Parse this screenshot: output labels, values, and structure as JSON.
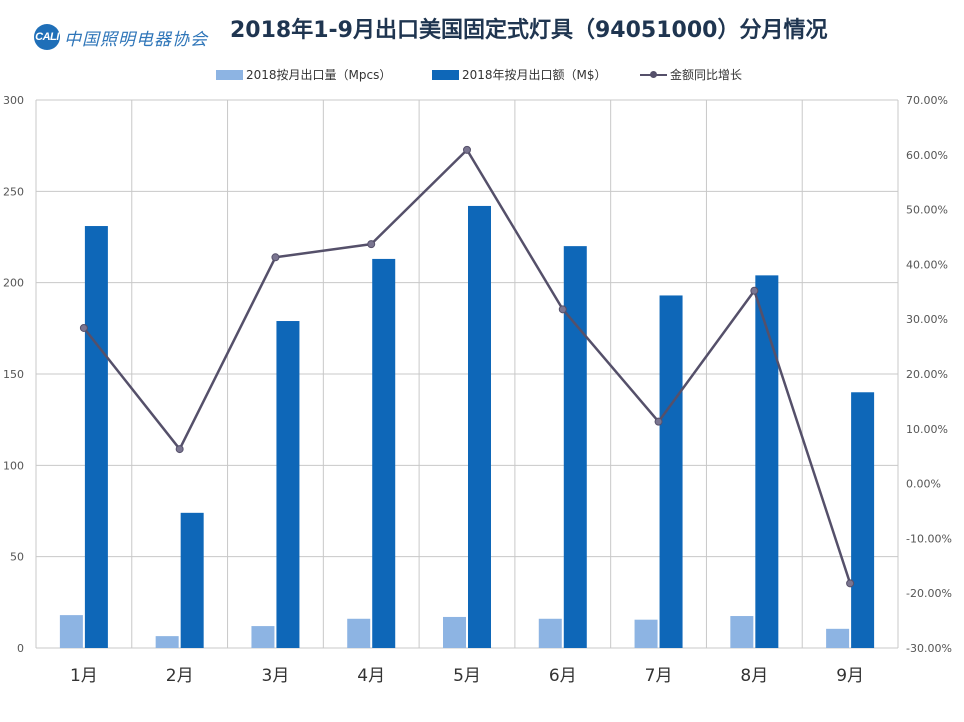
{
  "logo": {
    "abbr": "CALI",
    "name": "中国照明电器协会"
  },
  "chart_data": {
    "type": "bar",
    "title": "2018年1-9月出口美国固定式灯具（94051000）分月情况",
    "categories": [
      "1月",
      "2月",
      "3月",
      "4月",
      "5月",
      "6月",
      "7月",
      "8月",
      "9月"
    ],
    "series": [
      {
        "name": "2018按月出口量（Mpcs）",
        "type": "bar",
        "axis": "left",
        "color": "#8db4e3",
        "values": [
          18,
          6.5,
          12,
          16,
          17,
          16,
          15.5,
          17.5,
          10.5
        ]
      },
      {
        "name": "2018年按月出口额（M$）",
        "type": "bar",
        "axis": "left",
        "color": "#0e67b8",
        "values": [
          231,
          74,
          179,
          213,
          242,
          220,
          193,
          204,
          140
        ]
      },
      {
        "name": "金额同比增长",
        "type": "line",
        "axis": "right",
        "color": "#55506a",
        "values": [
          0.284,
          0.063,
          0.413,
          0.437,
          0.609,
          0.318,
          0.113,
          0.352,
          -0.182
        ]
      }
    ],
    "y_left": {
      "min": 0,
      "max": 300,
      "ticks": [
        "0",
        "50",
        "100",
        "150",
        "200",
        "250",
        "300"
      ]
    },
    "y_right": {
      "min": -0.3,
      "max": 0.7,
      "ticks": [
        "-30.00%",
        "-20.00%",
        "-10.00%",
        "0.00%",
        "10.00%",
        "20.00%",
        "30.00%",
        "40.00%",
        "50.00%",
        "60.00%",
        "70.00%"
      ]
    },
    "grid": true,
    "legend_position": "top"
  }
}
